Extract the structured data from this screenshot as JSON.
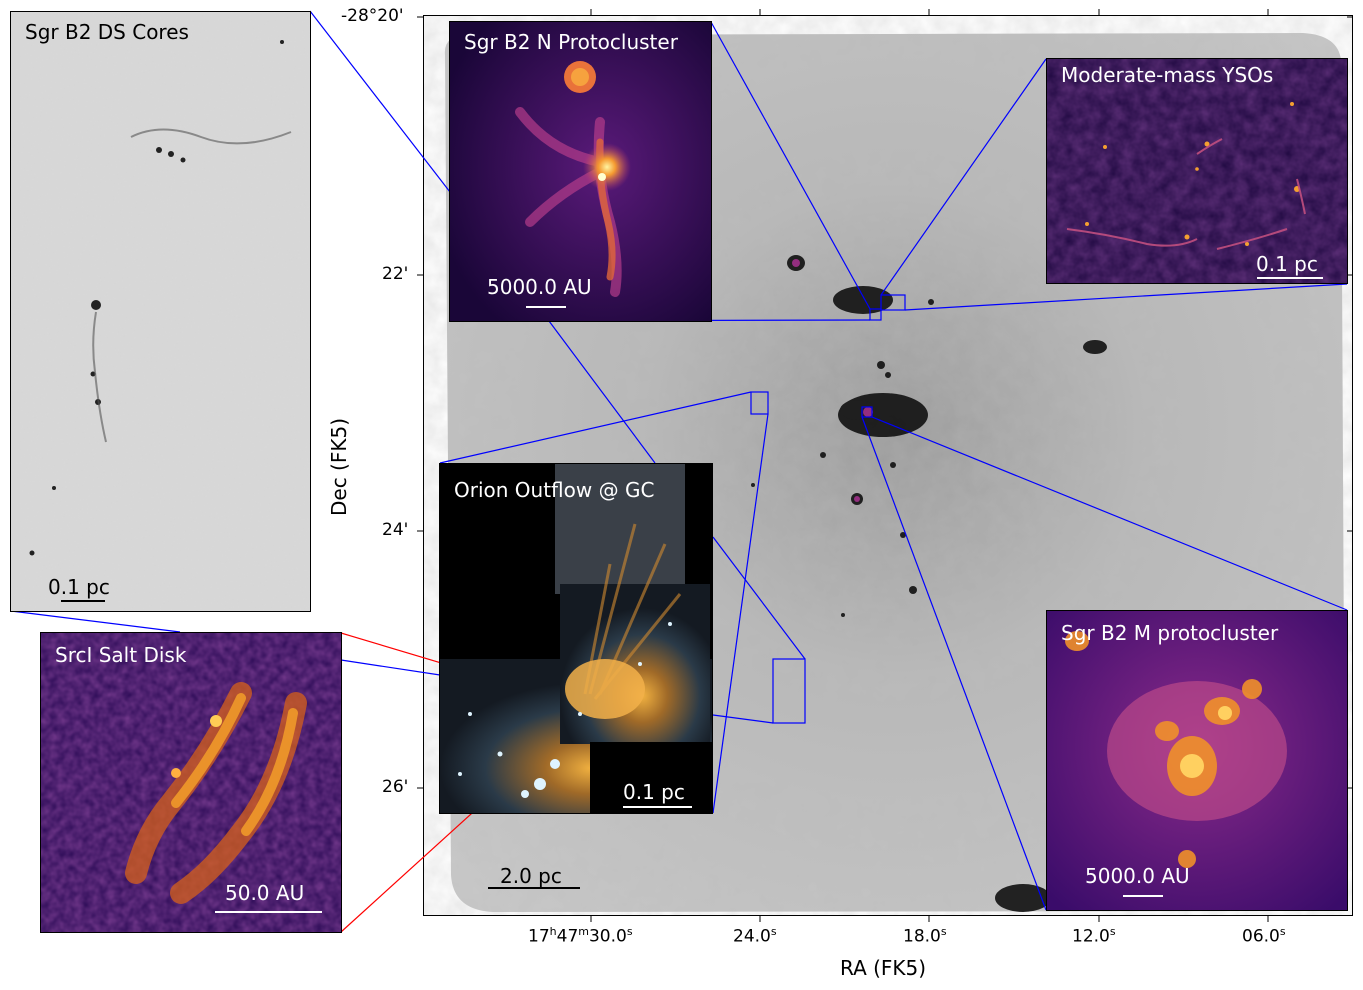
{
  "axes": {
    "xlabel": "RA (FK5)",
    "ylabel": "Dec (FK5)",
    "x_ticks": [
      {
        "label_base": "17",
        "sup_h": "h",
        "label_mid": "47",
        "sup_m": "m",
        "label_end": "30.0",
        "sup_s": "s"
      },
      {
        "label": "24.0",
        "sup_s": "s"
      },
      {
        "label": "18.0",
        "sup_s": "s"
      },
      {
        "label": "12.0",
        "sup_s": "s"
      },
      {
        "label": "06.0",
        "sup_s": "s"
      }
    ],
    "y_ticks": [
      "-28°20'",
      "22'",
      "24'",
      "26'"
    ]
  },
  "main_scalebar": "2.0 pc",
  "insets": {
    "ds_cores": {
      "title": "Sgr B2 DS Cores",
      "scalebar": "0.1 pc"
    },
    "b2n": {
      "title": "Sgr B2 N Protocluster",
      "scalebar": "5000.0 AU"
    },
    "ysos": {
      "title": "Moderate-mass YSOs",
      "scalebar": "0.1 pc"
    },
    "orion": {
      "title": "Orion Outflow @ GC",
      "scalebar": "0.1 pc"
    },
    "srci": {
      "title": "SrcI Salt Disk",
      "scalebar": "50.0 AU"
    },
    "b2m": {
      "title": "Sgr B2 M protocluster",
      "scalebar": "5000.0 AU"
    }
  },
  "colors": {
    "connector_blue": "#0000ff",
    "connector_red": "#ff0000",
    "inferno_dark": "#2a0a4a",
    "inferno_bright": "#f5a030"
  }
}
